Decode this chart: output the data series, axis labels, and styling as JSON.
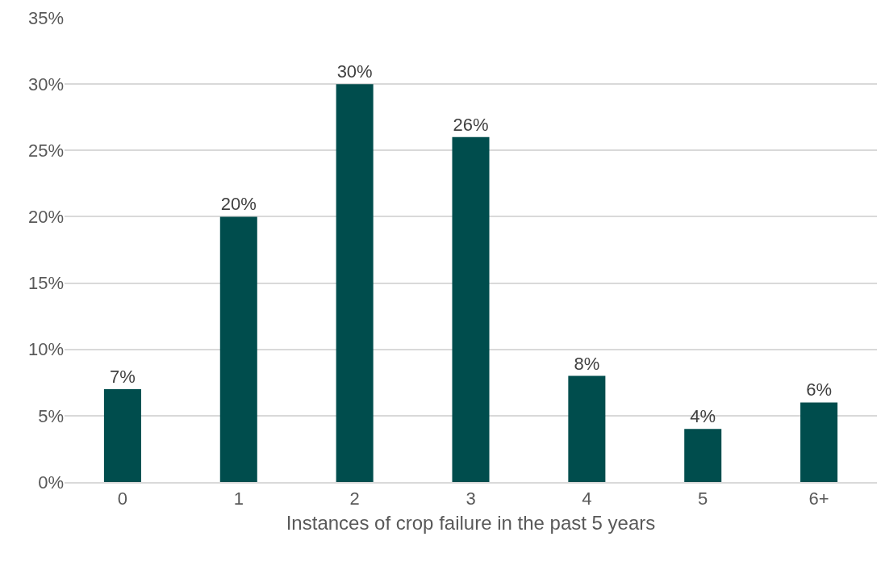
{
  "chart_data": {
    "type": "bar",
    "xlabel": "Instances of crop failure in the past 5 years",
    "categories": [
      "0",
      "1",
      "2",
      "3",
      "4",
      "5",
      "6+"
    ],
    "values": [
      7,
      20,
      30,
      26,
      8,
      4,
      6
    ],
    "value_labels": [
      "7%",
      "20%",
      "30%",
      "26%",
      "8%",
      "4%",
      "6%"
    ],
    "color": "#004d4d",
    "ylim": [
      0,
      35
    ],
    "yticks": [
      {
        "value": 0,
        "label": "0%"
      },
      {
        "value": 5,
        "label": "5%"
      },
      {
        "value": 10,
        "label": "10%"
      },
      {
        "value": 15,
        "label": "15%"
      },
      {
        "value": 20,
        "label": "20%"
      },
      {
        "value": 25,
        "label": "25%"
      },
      {
        "value": 30,
        "label": "30%"
      },
      {
        "value": 35,
        "label": "35%"
      }
    ],
    "grid": "y"
  }
}
